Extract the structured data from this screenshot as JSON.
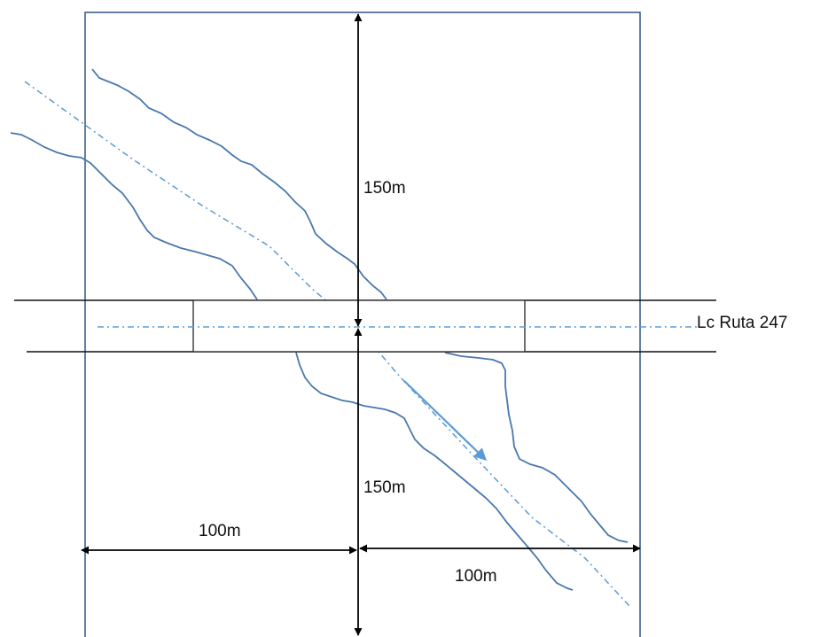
{
  "labels": {
    "upper_distance": "150m",
    "lower_distance": "150m",
    "left_distance": "100m",
    "right_distance": "100m",
    "route_axis": "Lc Ruta 247"
  },
  "colors": {
    "frame": "#3d5f8a",
    "river": "#4a78ad",
    "axis": "#5b9bd5",
    "flow_arrow": "#5b9bd5",
    "road": "#111111",
    "bridge": "#333333",
    "dimension": "#000000"
  }
}
